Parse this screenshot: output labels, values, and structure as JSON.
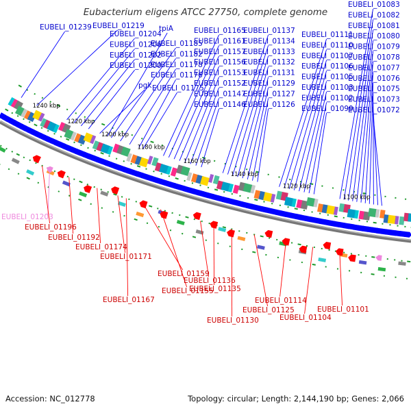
{
  "title": "Eubacterium eligens ATCC 27750, complete genome",
  "footer": {
    "accession": "Accession: NC_012778",
    "summary": "Topology: circular; Length: 2,144,190 bp; Genes: 2,066"
  },
  "colors": {
    "forward": "#0000ff",
    "reverse": "#ff0000",
    "forward_label": "#0000cc",
    "reverse_label": "#cc0000",
    "pseudo": "#ee88dd",
    "backbone": "#666666",
    "gc_dots": "#1d9a2a"
  },
  "kbp_ticks": [
    "1240 kbp",
    "1220 kbp",
    "1200 kbp",
    "1180 kbp",
    "1160 kbp",
    "1140 kbp",
    "1120 kbp",
    "1100 kbp"
  ],
  "forward_labels": [
    "EUBELI_01239",
    "EUBELI_01219",
    "EUBELI_01204",
    "EUBELI_01206",
    "EUBELI_01202",
    "EUBELI_01200",
    "tpiA",
    "EUBELI_01185",
    "EUBELI_01182",
    "EUBELI_01178",
    "EUBELI_01176",
    "pgk",
    "EUBELI_01175",
    "EUBELI_01165",
    "EUBELI_01161",
    "EUBELI_01157",
    "EUBELI_01156",
    "EUBELI_01153",
    "EUBELI_01152",
    "EUBELI_01147",
    "EUBELI_01146",
    "EUBELI_01137",
    "EUBELI_01134",
    "EUBELI_01133",
    "EUBELI_01132",
    "EUBELI_01131",
    "EUBELI_01129",
    "EUBELI_01127",
    "EUBELI_01126",
    "EUBELI_01111",
    "EUBELI_01110",
    "EUBELI_01107",
    "EUBELI_01106",
    "EUBELI_01105",
    "EUBELI_01103",
    "EUBELI_01102",
    "EUBELI_01099",
    "EUBELI_01083",
    "EUBELI_01082",
    "EUBELI_01081",
    "EUBELI_01080",
    "EUBELI_01079",
    "EUBELI_01078",
    "EUBELI_01077",
    "EUBELI_01076",
    "EUBELI_01075",
    "EUBELI_01073",
    "EUBELI_01072"
  ],
  "pseudo_labels": [
    "EUBELI_01203"
  ],
  "reverse_labels": [
    "EUBELI_01196",
    "EUBELI_01192",
    "EUBELI_01174",
    "EUBELI_01171",
    "EUBELI_01159",
    "EUBELI_01167",
    "EUBELI_01155",
    "EUBELI_01136",
    "EUBELI_01135",
    "EUBELI_01114",
    "EUBELI_01125",
    "EUBELI_01130",
    "EUBELI_01104",
    "EUBELI_01101"
  ]
}
